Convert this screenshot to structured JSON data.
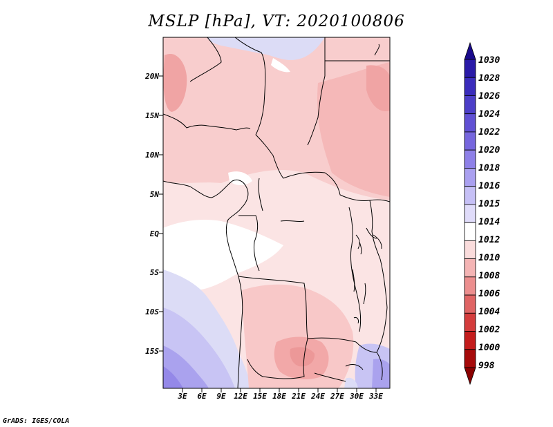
{
  "title": "MSLP [hPa], VT: 2020100806",
  "lat_labels": [
    "20N",
    "15N",
    "10N",
    "5N",
    "EQ",
    "5S",
    "10S",
    "15S"
  ],
  "lon_labels": [
    "3E",
    "6E",
    "9E",
    "12E",
    "15E",
    "18E",
    "21E",
    "24E",
    "27E",
    "30E",
    "33E"
  ],
  "colorbar": {
    "labels": [
      "1030",
      "1028",
      "1026",
      "1024",
      "1022",
      "1020",
      "1018",
      "1016",
      "1015",
      "1014",
      "1012",
      "1010",
      "1008",
      "1006",
      "1004",
      "1002",
      "1000",
      "998"
    ],
    "colors": [
      "#1a0a8c",
      "#2a1aa8",
      "#3a2cbc",
      "#4c3ec8",
      "#6050d4",
      "#7666de",
      "#8e80e8",
      "#aaa0f0",
      "#c6c0f6",
      "#e0dcfa",
      "#ffffff",
      "#fadcdc",
      "#f4b4b4",
      "#ec8e8e",
      "#e06464",
      "#d43c3c",
      "#c41c1c",
      "#a60a0a",
      "#8a0000"
    ]
  },
  "credit": "GrADS: IGES/COLA"
}
